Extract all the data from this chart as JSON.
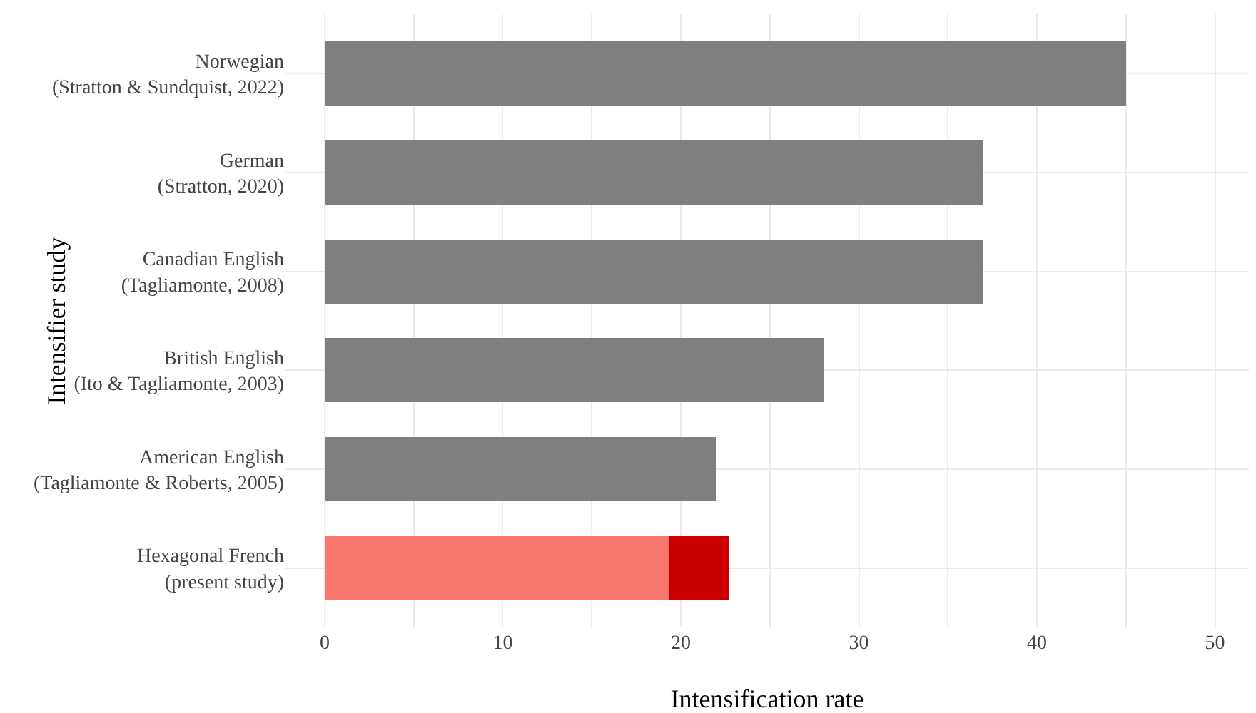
{
  "chart_data": {
    "type": "bar",
    "orientation": "horizontal",
    "stacked": true,
    "xlabel": "Intensification rate",
    "ylabel": "Intensifier study",
    "categories": [
      "Norwegian\n(Stratton & Sundquist, 2022)",
      "German\n(Stratton, 2020)",
      "Canadian English\n(Tagliamonte, 2008)",
      "British English\n(Ito & Tagliamonte, 2003)",
      "American English\n(Tagliamonte & Roberts, 2005)",
      "Hexagonal French\n(present study)"
    ],
    "series": [
      {
        "colors": [
          "#7f7f7f",
          "#7f7f7f",
          "#7f7f7f",
          "#7f7f7f",
          "#7f7f7f",
          "#f8766d"
        ],
        "values": [
          45,
          37,
          37,
          28,
          22,
          19.3
        ]
      },
      {
        "colors": [
          "#cc0000",
          "#cc0000",
          "#cc0000",
          "#cc0000",
          "#cc0000",
          "#cc0000"
        ],
        "values": [
          null,
          null,
          null,
          null,
          null,
          3.4
        ]
      }
    ],
    "xlim": [
      -2.2,
      51.9
    ],
    "xticks": [
      0,
      {
        "value": 5,
        "label": null
      },
      10,
      {
        "value": 15,
        "label": null
      },
      20,
      {
        "value": 25,
        "label": null
      },
      30,
      {
        "value": 35,
        "label": null
      },
      40,
      {
        "value": 45,
        "label": null
      },
      50
    ],
    "grid": true
  }
}
